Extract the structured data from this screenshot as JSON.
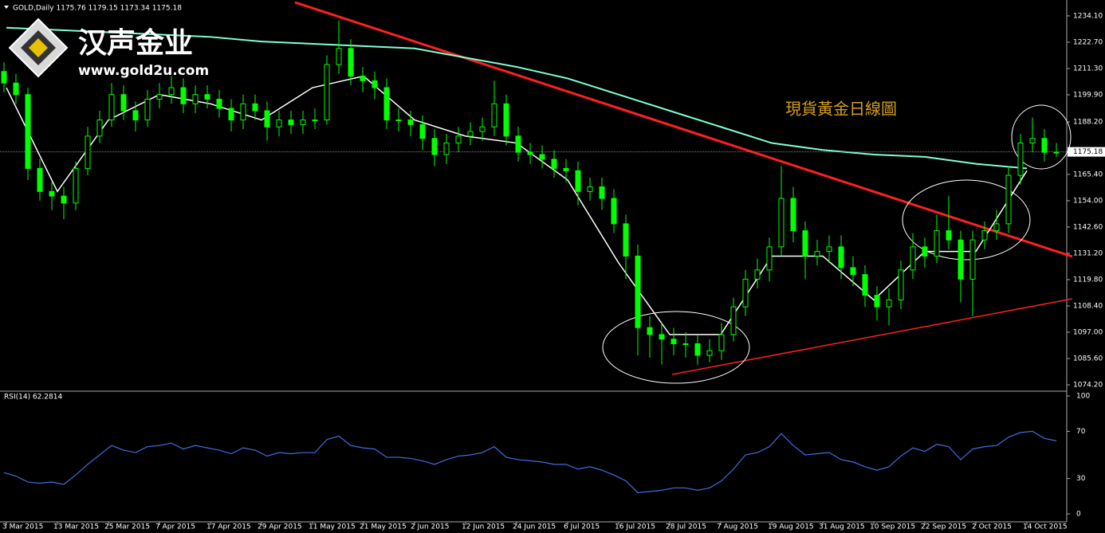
{
  "chart_data": [
    {
      "type": "candlestick",
      "title": "GOLD,Daily  1175.76 1179.15 1173.34 1175.18",
      "logo": {
        "name": "汉声金业",
        "url": "www.gold2u.com"
      },
      "annotation": "現貨黃金日線圖",
      "color": "#00ff00",
      "ylim": [
        1071.8,
        1240.3
      ],
      "yticks": [
        {
          "value": 1234.1,
          "label": "1234.10"
        },
        {
          "value": 1222.7,
          "label": "1222.70"
        },
        {
          "value": 1211.3,
          "label": "1211.30"
        },
        {
          "value": 1199.9,
          "label": "1199.90"
        },
        {
          "value": 1188.2,
          "label": "1188.20"
        },
        {
          "value": 1165.4,
          "label": "1165.40"
        },
        {
          "value": 1154,
          "label": "1154.00"
        },
        {
          "value": 1142.6,
          "label": "1142.60"
        },
        {
          "value": 1131.2,
          "label": "1131.20"
        },
        {
          "value": 1119.8,
          "label": "1119.80"
        },
        {
          "value": 1108.4,
          "label": "1108.40"
        },
        {
          "value": 1097,
          "label": "1097.00"
        },
        {
          "value": 1085.6,
          "label": "1085.60"
        },
        {
          "value": 1074.2,
          "label": "1074.20"
        }
      ],
      "last_price": {
        "value": 1175.18,
        "label": "1175.18"
      },
      "xtick_labels": [
        "3 Mar 2015",
        "13 Mar 2015",
        "25 Mar 2015",
        "7 Apr 2015",
        "17 Apr 2015",
        "29 Apr 2015",
        "11 May 2015",
        "21 May 2015",
        "2 Jun 2015",
        "12 Jun 2015",
        "24 Jun 2015",
        "6 Jul 2015",
        "16 Jul 2015",
        "28 Jul 2015",
        "7 Aug 2015",
        "19 Aug 2015",
        "31 Aug 2015",
        "10 Sep 2015",
        "22 Sep 2015",
        "2 Oct 2015",
        "14 Oct 2015"
      ],
      "open": [
        1210,
        1205,
        1200,
        1168,
        1158,
        1156,
        1153,
        1168,
        1182,
        1189,
        1200,
        1193,
        1189,
        1198,
        1200,
        1203,
        1196,
        1200,
        1198,
        1194,
        1189,
        1196,
        1193,
        1186,
        1189,
        1187,
        1189,
        1189,
        1213,
        1220,
        1208,
        1206,
        1203,
        1189,
        1189,
        1187,
        1181,
        1174,
        1179,
        1182,
        1184,
        1186,
        1196,
        1182,
        1175,
        1174,
        1172,
        1168,
        1167,
        1158,
        1160,
        1155,
        1144,
        1130,
        1099,
        1096,
        1094,
        1092,
        1092,
        1087,
        1089,
        1096,
        1108,
        1120,
        1124,
        1134,
        1155,
        1141,
        1130,
        1132,
        1134,
        1125,
        1122,
        1113,
        1108,
        1111,
        1124,
        1134,
        1130,
        1141,
        1137,
        1120,
        1137,
        1141,
        1144,
        1165,
        1179,
        1181,
        1175
      ],
      "high": [
        1214,
        1209,
        1203,
        1172,
        1162,
        1160,
        1171,
        1186,
        1193,
        1205,
        1204,
        1197,
        1202,
        1205,
        1208,
        1207,
        1204,
        1204,
        1202,
        1198,
        1200,
        1200,
        1197,
        1193,
        1193,
        1193,
        1194,
        1217,
        1232,
        1224,
        1212,
        1210,
        1207,
        1194,
        1193,
        1191,
        1185,
        1183,
        1186,
        1188,
        1190,
        1206,
        1200,
        1186,
        1179,
        1178,
        1176,
        1172,
        1171,
        1164,
        1164,
        1159,
        1148,
        1135,
        1104,
        1101,
        1099,
        1097,
        1096,
        1094,
        1101,
        1112,
        1124,
        1129,
        1138,
        1169,
        1160,
        1145,
        1137,
        1139,
        1139,
        1130,
        1126,
        1117,
        1116,
        1128,
        1140,
        1138,
        1148,
        1156,
        1141,
        1141,
        1145,
        1150,
        1169,
        1183,
        1190,
        1185,
        1179
      ],
      "low": [
        1201,
        1196,
        1163,
        1154,
        1150,
        1146,
        1150,
        1165,
        1179,
        1186,
        1189,
        1184,
        1186,
        1194,
        1196,
        1192,
        1192,
        1194,
        1190,
        1184,
        1185,
        1189,
        1180,
        1182,
        1183,
        1183,
        1185,
        1187,
        1209,
        1204,
        1201,
        1198,
        1185,
        1184,
        1182,
        1176,
        1169,
        1170,
        1175,
        1178,
        1180,
        1182,
        1178,
        1171,
        1170,
        1168,
        1164,
        1162,
        1152,
        1154,
        1150,
        1140,
        1120,
        1087,
        1086,
        1083,
        1087,
        1086,
        1083,
        1084,
        1085,
        1093,
        1104,
        1116,
        1119,
        1130,
        1136,
        1120,
        1126,
        1127,
        1120,
        1117,
        1108,
        1102,
        1100,
        1107,
        1120,
        1125,
        1127,
        1133,
        1110,
        1104,
        1133,
        1137,
        1140,
        1161,
        1175,
        1171,
        1173
      ],
      "close": [
        1205,
        1200,
        1168,
        1158,
        1156,
        1153,
        1168,
        1182,
        1189,
        1200,
        1193,
        1189,
        1198,
        1200,
        1203,
        1196,
        1200,
        1198,
        1194,
        1189,
        1196,
        1193,
        1186,
        1189,
        1187,
        1189,
        1189,
        1213,
        1220,
        1208,
        1206,
        1203,
        1189,
        1189,
        1187,
        1181,
        1174,
        1179,
        1182,
        1184,
        1186,
        1196,
        1182,
        1175,
        1174,
        1172,
        1168,
        1167,
        1158,
        1160,
        1155,
        1144,
        1130,
        1099,
        1096,
        1094,
        1092,
        1092,
        1087,
        1089,
        1096,
        1108,
        1120,
        1124,
        1134,
        1155,
        1141,
        1130,
        1132,
        1134,
        1125,
        1122,
        1113,
        1108,
        1111,
        1124,
        1134,
        1130,
        1141,
        1137,
        1120,
        1137,
        1141,
        1144,
        1165,
        1179,
        1181,
        1175,
        1175
      ],
      "overlays": [
        {
          "color": "#7fffd4",
          "values": [
            1229,
            1228,
            1227,
            1226,
            1225,
            1223,
            1222,
            1221,
            1220,
            1216,
            1212,
            1207,
            1200,
            1193,
            1186,
            1179,
            1176,
            1174,
            1173,
            1170,
            1168
          ]
        },
        {
          "color": "#ffffff",
          "values": [
            1203,
            1158,
            1189,
            1200,
            1196,
            1189,
            1203,
            1208,
            1189,
            1182,
            1179,
            1163,
            1127,
            1096,
            1096,
            1130,
            1130,
            1111,
            1132,
            1132,
            1167
          ]
        }
      ]
    },
    {
      "type": "line",
      "title": "RSI(14) 62.2814",
      "color": "#3c6fe0",
      "ylim": [
        0,
        100
      ],
      "yticks": [
        100,
        70,
        30,
        0
      ],
      "values": [
        35,
        32,
        27,
        26,
        27,
        25,
        33,
        42,
        50,
        58,
        54,
        52,
        57,
        58,
        60,
        55,
        58,
        56,
        54,
        51,
        56,
        54,
        49,
        52,
        51,
        52,
        52,
        63,
        66,
        58,
        56,
        55,
        48,
        48,
        47,
        45,
        42,
        46,
        49,
        50,
        52,
        57,
        48,
        46,
        45,
        44,
        42,
        42,
        38,
        40,
        37,
        33,
        28,
        18,
        19,
        20,
        22,
        22,
        20,
        22,
        28,
        38,
        50,
        52,
        57,
        68,
        58,
        50,
        51,
        52,
        46,
        44,
        40,
        37,
        40,
        49,
        56,
        53,
        59,
        57,
        46,
        55,
        57,
        58,
        65,
        69,
        70,
        64,
        62
      ]
    }
  ]
}
